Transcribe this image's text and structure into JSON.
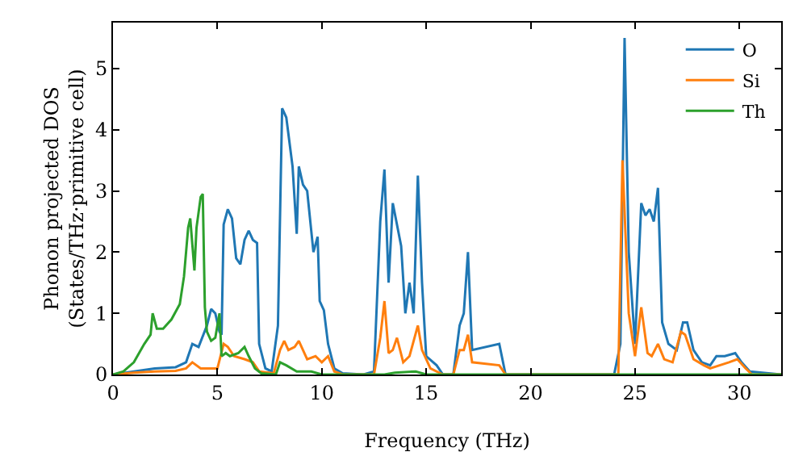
{
  "chart_data": {
    "type": "line",
    "xlabel": "Frequency (THz)",
    "ylabel": "Phonon projected DOS\n(States/THz·primitive cell)",
    "xlim": [
      0,
      32
    ],
    "ylim": [
      0,
      5.75
    ],
    "xticks": [
      0,
      5,
      10,
      15,
      20,
      25,
      30
    ],
    "yticks": [
      0,
      1,
      2,
      3,
      4,
      5
    ],
    "grid": false,
    "legend": "top right",
    "marker": "none",
    "line_style": "solid",
    "series": [
      {
        "name": "O",
        "color": "#1f77b4",
        "x": [
          0,
          1,
          2,
          3,
          3.5,
          3.8,
          4.1,
          4.5,
          4.7,
          4.9,
          5.1,
          5.2,
          5.3,
          5.5,
          5.7,
          5.9,
          6.1,
          6.3,
          6.5,
          6.7,
          6.9,
          7.0,
          7.3,
          7.6,
          7.9,
          8.1,
          8.3,
          8.6,
          8.8,
          8.9,
          9.1,
          9.3,
          9.6,
          9.8,
          9.9,
          10.1,
          10.3,
          10.6,
          11,
          12,
          12.5,
          12.8,
          13.0,
          13.2,
          13.4,
          13.8,
          14.0,
          14.2,
          14.4,
          14.6,
          14.8,
          15.0,
          15.5,
          15.8,
          16.3,
          16.6,
          16.8,
          17.0,
          17.2,
          18.5,
          18.8,
          24.0,
          24.3,
          24.5,
          24.7,
          25.0,
          25.3,
          25.5,
          25.7,
          25.9,
          26.1,
          26.3,
          26.6,
          27.0,
          27.3,
          27.5,
          27.8,
          28.2,
          28.6,
          28.9,
          29.3,
          29.8,
          30.1,
          30.5,
          32
        ],
        "values": [
          0,
          0.05,
          0.1,
          0.12,
          0.2,
          0.5,
          0.45,
          0.8,
          1.07,
          1.0,
          0.7,
          0.65,
          2.45,
          2.7,
          2.55,
          1.9,
          1.8,
          2.2,
          2.35,
          2.2,
          2.15,
          0.5,
          0.1,
          0.05,
          0.8,
          4.35,
          4.2,
          3.4,
          2.3,
          3.4,
          3.1,
          3.0,
          2.0,
          2.25,
          1.2,
          1.05,
          0.5,
          0.1,
          0.02,
          0,
          0.05,
          2.5,
          3.35,
          1.5,
          2.8,
          2.1,
          1.0,
          1.5,
          1.0,
          3.25,
          1.5,
          0.3,
          0.15,
          0,
          0,
          0.8,
          1.0,
          2.0,
          0.4,
          0.5,
          0,
          0,
          0.5,
          5.5,
          2.0,
          0.5,
          2.8,
          2.6,
          2.7,
          2.5,
          3.05,
          0.85,
          0.5,
          0.4,
          0.85,
          0.85,
          0.4,
          0.2,
          0.15,
          0.3,
          0.3,
          0.35,
          0.2,
          0.05,
          0
        ]
      },
      {
        "name": "Si",
        "color": "#ff7f0e",
        "x": [
          0,
          1,
          2,
          3,
          3.5,
          3.8,
          4.2,
          5.0,
          5.3,
          5.5,
          5.8,
          6.3,
          6.7,
          7.0,
          7.7,
          8.0,
          8.2,
          8.4,
          8.7,
          8.9,
          9.3,
          9.7,
          10.0,
          10.3,
          10.6,
          11,
          12.5,
          12.8,
          13.0,
          13.2,
          13.4,
          13.6,
          13.9,
          14.2,
          14.6,
          14.8,
          15.2,
          15.8,
          16.3,
          16.6,
          16.8,
          17.0,
          17.2,
          18.5,
          18.8,
          24.2,
          24.4,
          24.7,
          25.0,
          25.3,
          25.6,
          25.8,
          26.1,
          26.4,
          26.8,
          27.2,
          27.4,
          27.8,
          28.3,
          28.6,
          29.5,
          29.9,
          30.3,
          30.6,
          32
        ],
        "values": [
          0,
          0.03,
          0.05,
          0.06,
          0.1,
          0.2,
          0.1,
          0.1,
          0.5,
          0.45,
          0.3,
          0.25,
          0.2,
          0.05,
          0.02,
          0.4,
          0.55,
          0.4,
          0.45,
          0.55,
          0.25,
          0.3,
          0.2,
          0.3,
          0.05,
          0,
          0,
          0.6,
          1.2,
          0.35,
          0.4,
          0.6,
          0.2,
          0.3,
          0.8,
          0.4,
          0.1,
          0,
          0,
          0.4,
          0.4,
          0.65,
          0.2,
          0.15,
          0,
          0,
          3.5,
          1.0,
          0.3,
          1.1,
          0.35,
          0.3,
          0.5,
          0.25,
          0.2,
          0.7,
          0.65,
          0.25,
          0.15,
          0.1,
          0.2,
          0.25,
          0.1,
          0,
          0
        ]
      },
      {
        "name": "Th",
        "color": "#2ca02c",
        "x": [
          0,
          0.5,
          1.0,
          1.5,
          1.8,
          1.9,
          2.1,
          2.4,
          2.8,
          3.2,
          3.4,
          3.6,
          3.7,
          3.9,
          4.0,
          4.2,
          4.3,
          4.4,
          4.5,
          4.7,
          4.9,
          5.1,
          5.2,
          5.4,
          5.6,
          6.0,
          6.3,
          6.5,
          6.8,
          7.1,
          7.8,
          8.0,
          8.3,
          8.8,
          9.5,
          10.0,
          13,
          13.5,
          14.5,
          15.0,
          32
        ],
        "values": [
          0,
          0.05,
          0.2,
          0.5,
          0.65,
          1.0,
          0.75,
          0.75,
          0.9,
          1.15,
          1.6,
          2.4,
          2.55,
          1.7,
          2.4,
          2.9,
          2.95,
          1.1,
          0.7,
          0.55,
          0.6,
          1.0,
          0.3,
          0.35,
          0.3,
          0.35,
          0.45,
          0.3,
          0.1,
          0.02,
          0,
          0.2,
          0.15,
          0.05,
          0.05,
          0,
          0,
          0.03,
          0.05,
          0,
          0
        ]
      }
    ]
  }
}
